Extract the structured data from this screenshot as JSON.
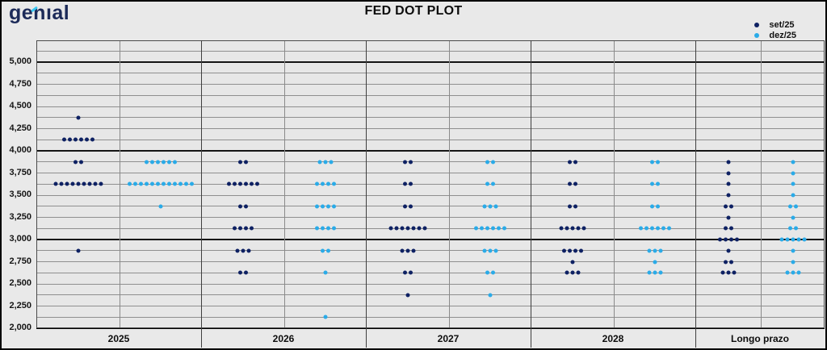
{
  "header": {
    "logo_text": "genıal",
    "title": "FED DOT PLOT"
  },
  "legend": {
    "items": [
      {
        "label": "set/25",
        "color": "#0e2163"
      },
      {
        "label": "dez/25",
        "color": "#2aabe8"
      }
    ]
  },
  "chart_data": {
    "type": "scatter",
    "title": "FED DOT PLOT",
    "xlabel": "",
    "ylabel": "",
    "legend_position": "top-right",
    "grid": "on",
    "y_range": [
      2000,
      5250
    ],
    "y_gridline_step": 125,
    "y_dark_gridlines": [
      5000,
      4000,
      3000,
      2000
    ],
    "y_ticks": [
      {
        "value": 5000,
        "label": "5,000"
      },
      {
        "value": 4750,
        "label": "4,750"
      },
      {
        "value": 4500,
        "label": "4,500"
      },
      {
        "value": 4250,
        "label": "4,250"
      },
      {
        "value": 4000,
        "label": "4,000"
      },
      {
        "value": 3750,
        "label": "3,750"
      },
      {
        "value": 3500,
        "label": "3,500"
      },
      {
        "value": 3250,
        "label": "3,250"
      },
      {
        "value": 3000,
        "label": "3,000"
      },
      {
        "value": 2750,
        "label": "2,750"
      },
      {
        "value": 2500,
        "label": "2,500"
      },
      {
        "value": 2250,
        "label": "2,250"
      },
      {
        "value": 2000,
        "label": "2,000"
      }
    ],
    "categories": [
      "2025",
      "2026",
      "2027",
      "2028",
      "Longo prazo"
    ],
    "series": [
      {
        "name": "set/25",
        "color": "#0e2163",
        "dots_by_category": [
          [
            [
              4375,
              1
            ],
            [
              4125,
              6
            ],
            [
              3875,
              2
            ],
            [
              3625,
              9
            ],
            [
              2875,
              1
            ]
          ],
          [
            [
              3875,
              2
            ],
            [
              3625,
              6
            ],
            [
              3375,
              2
            ],
            [
              3125,
              4
            ],
            [
              2875,
              3
            ],
            [
              2625,
              2
            ]
          ],
          [
            [
              3875,
              2
            ],
            [
              3625,
              2
            ],
            [
              3375,
              2
            ],
            [
              3125,
              7
            ],
            [
              2875,
              3
            ],
            [
              2625,
              2
            ],
            [
              2375,
              1
            ]
          ],
          [
            [
              3875,
              2
            ],
            [
              3625,
              2
            ],
            [
              3375,
              2
            ],
            [
              3125,
              5
            ],
            [
              2875,
              4
            ],
            [
              2750,
              1
            ],
            [
              2625,
              3
            ]
          ],
          [
            [
              3875,
              1
            ],
            [
              3750,
              1
            ],
            [
              3625,
              1
            ],
            [
              3500,
              1
            ],
            [
              3375,
              2
            ],
            [
              3250,
              1
            ],
            [
              3125,
              2
            ],
            [
              3000,
              4
            ],
            [
              2875,
              1
            ],
            [
              2750,
              2
            ],
            [
              2625,
              3
            ]
          ]
        ]
      },
      {
        "name": "dez/25",
        "color": "#2aabe8",
        "dots_by_category": [
          [
            [
              3875,
              6
            ],
            [
              3625,
              12
            ],
            [
              3375,
              1
            ]
          ],
          [
            [
              3875,
              3
            ],
            [
              3625,
              4
            ],
            [
              3375,
              4
            ],
            [
              3125,
              4
            ],
            [
              2875,
              2
            ],
            [
              2625,
              1
            ],
            [
              2125,
              1
            ]
          ],
          [
            [
              3875,
              2
            ],
            [
              3625,
              2
            ],
            [
              3375,
              3
            ],
            [
              3125,
              6
            ],
            [
              2875,
              3
            ],
            [
              2625,
              2
            ],
            [
              2375,
              1
            ]
          ],
          [
            [
              3875,
              2
            ],
            [
              3625,
              2
            ],
            [
              3375,
              2
            ],
            [
              3125,
              6
            ],
            [
              2875,
              3
            ],
            [
              2750,
              1
            ],
            [
              2625,
              3
            ]
          ],
          [
            [
              3875,
              1
            ],
            [
              3750,
              1
            ],
            [
              3625,
              1
            ],
            [
              3500,
              1
            ],
            [
              3375,
              2
            ],
            [
              3250,
              1
            ],
            [
              3125,
              2
            ],
            [
              3000,
              5
            ],
            [
              2875,
              1
            ],
            [
              2750,
              1
            ],
            [
              2625,
              3
            ]
          ]
        ]
      }
    ]
  }
}
